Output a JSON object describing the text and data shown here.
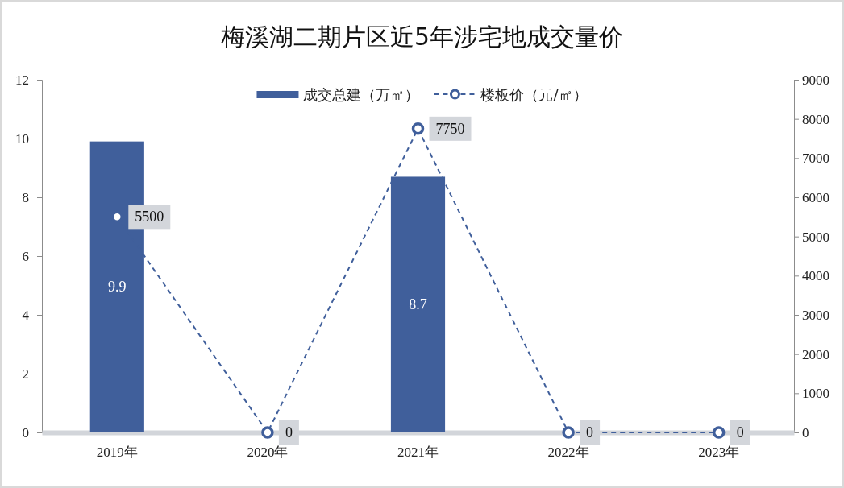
{
  "chart_data": {
    "type": "bar",
    "title": "梅溪湖二期片区近5年涉宅地成交量价",
    "categories": [
      "2019年",
      "2020年",
      "2021年",
      "2022年",
      "2023年"
    ],
    "series": [
      {
        "name": "成交总建（万㎡）",
        "color": "#405f9b",
        "values": [
          9.9,
          0,
          8.7,
          0,
          0
        ],
        "value_labels": [
          "9.9",
          null,
          "8.7",
          null,
          null
        ]
      },
      {
        "name": "楼板价（元/㎡）",
        "type": "line",
        "axis": "y2",
        "color": "#405f9b",
        "values": [
          5500,
          0,
          7750,
          0,
          0
        ],
        "value_labels": [
          "5500",
          "0",
          "7750",
          "0",
          "0"
        ],
        "marker": "circle",
        "line_style": "dashed"
      }
    ],
    "ylim": [
      0,
      12
    ],
    "yticks": [
      0,
      2,
      4,
      6,
      8,
      10,
      12
    ],
    "y2lim": [
      0,
      9000
    ],
    "y2ticks": [
      0,
      1000,
      2000,
      3000,
      4000,
      5000,
      6000,
      7000,
      8000,
      9000
    ],
    "legend": "top"
  }
}
